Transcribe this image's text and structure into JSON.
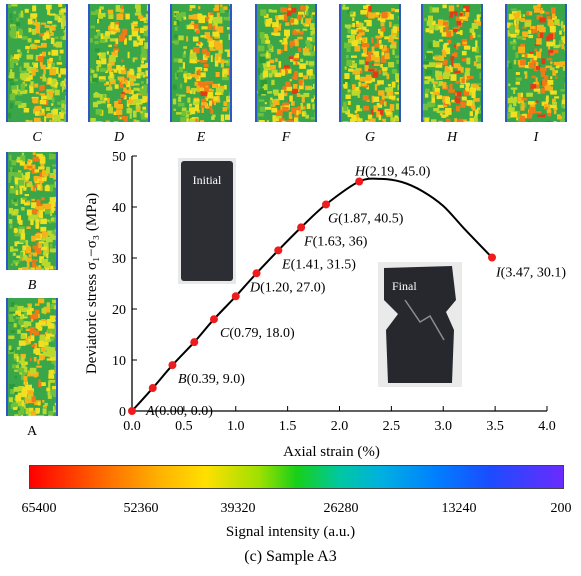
{
  "chart_data": {
    "type": "line",
    "xlabel": "Axial strain (%)",
    "ylabel": "Deviatoric stress σ₁−σ₃ (MPa)",
    "xlim": [
      0.0,
      4.0
    ],
    "ylim": [
      0,
      50
    ],
    "xticks": [
      "0.0",
      "0.5",
      "1.0",
      "1.5",
      "2.0",
      "2.5",
      "3.0",
      "3.5",
      "4.0"
    ],
    "yticks": [
      "0",
      "10",
      "20",
      "30",
      "40",
      "50"
    ],
    "series": [
      {
        "x": [
          0.0,
          0.2,
          0.39,
          0.6,
          0.79,
          1.0,
          1.2,
          1.41,
          1.63,
          1.87,
          2.19,
          2.4,
          2.6,
          2.8,
          3.0,
          3.2,
          3.47
        ],
        "y": [
          0.0,
          4.5,
          9.0,
          13.5,
          18.0,
          22.5,
          27.0,
          31.5,
          36.0,
          40.5,
          45.0,
          45.5,
          44.9,
          43.1,
          40.2,
          35.8,
          30.1
        ]
      }
    ],
    "markers": [
      {
        "x": 0.0,
        "y": 0.0
      },
      {
        "x": 0.2,
        "y": 4.5
      },
      {
        "x": 0.39,
        "y": 9.0
      },
      {
        "x": 0.6,
        "y": 13.5
      },
      {
        "x": 0.79,
        "y": 18.0
      },
      {
        "x": 1.0,
        "y": 22.5
      },
      {
        "x": 1.2,
        "y": 27.0
      },
      {
        "x": 1.41,
        "y": 31.5
      },
      {
        "x": 1.63,
        "y": 36.0
      },
      {
        "x": 1.87,
        "y": 40.5
      },
      {
        "x": 2.19,
        "y": 45.0
      },
      {
        "x": 3.47,
        "y": 30.1
      }
    ],
    "annotations": [
      {
        "letter": "A",
        "text": "(0.00, 0.0)",
        "x": 0.0,
        "y": 0.0
      },
      {
        "letter": "B",
        "text": "(0.39, 9.0)",
        "x": 0.39,
        "y": 9.0
      },
      {
        "letter": "C",
        "text": "(0.79, 18.0)",
        "x": 0.79,
        "y": 18.0
      },
      {
        "letter": "D",
        "text": "(1.20, 27.0)",
        "x": 1.2,
        "y": 27.0
      },
      {
        "letter": "E",
        "text": "(1.41, 31.5)",
        "x": 1.41,
        "y": 31.5
      },
      {
        "letter": "F",
        "text": "(1.63, 36)",
        "x": 1.63,
        "y": 36.0
      },
      {
        "letter": "G",
        "text": "(1.87, 40.5)",
        "x": 1.87,
        "y": 40.5
      },
      {
        "letter": "H",
        "text": "(2.19, 45.0)",
        "x": 2.19,
        "y": 45.0
      },
      {
        "letter": "I",
        "text": "(3.47, 30.1)",
        "x": 3.47,
        "y": 30.1
      }
    ],
    "inset_labels": {
      "initial": "Initial",
      "final": "Final"
    },
    "grid": false,
    "line_color": "#000000",
    "marker_color": "#ee1c1c"
  },
  "thumbnails": {
    "top": [
      "C",
      "D",
      "E",
      "F",
      "G",
      "H",
      "I"
    ],
    "left_upper": "B",
    "left_lower": "A"
  },
  "colorbar": {
    "ticks": [
      "65400",
      "52360",
      "39320",
      "26280",
      "13240",
      "200"
    ],
    "title": "Signal intensity (a.u.)",
    "colors": [
      "#ff0000",
      "#ffb000",
      "#18d018",
      "#00b0e0",
      "#1a4dff",
      "#6a2bff"
    ]
  },
  "caption": "(c) Sample A3"
}
